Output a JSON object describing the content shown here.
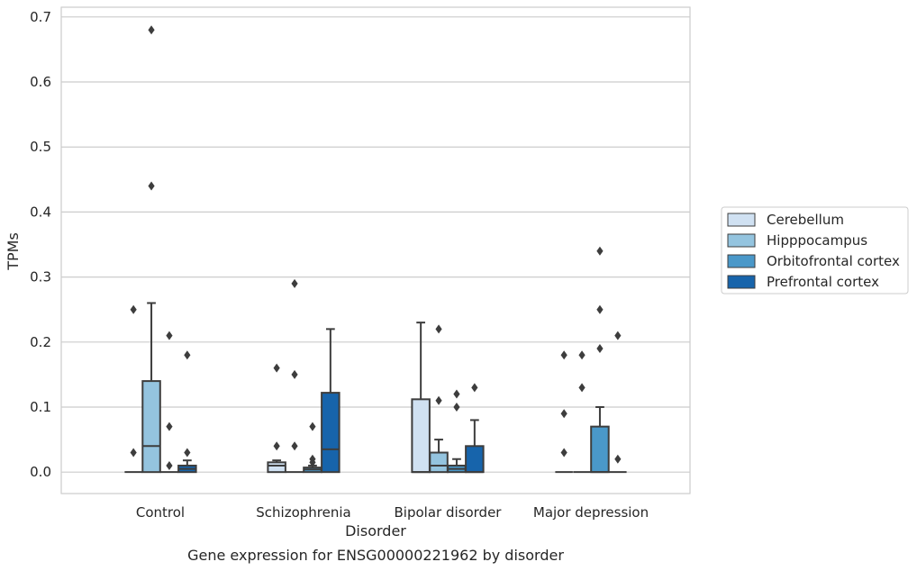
{
  "chart_data": {
    "type": "boxplot",
    "title": "Gene expression for ENSG00000221962 by disorder",
    "xlabel": "Disorder",
    "ylabel": "TPMs",
    "ylim": [
      -0.033,
      0.715
    ],
    "yticks": [
      0.0,
      0.1,
      0.2,
      0.3,
      0.4,
      0.5,
      0.6,
      0.7
    ],
    "ytick_labels": [
      "0.0",
      "0.1",
      "0.2",
      "0.3",
      "0.4",
      "0.5",
      "0.6",
      "0.7"
    ],
    "categories": [
      "Control",
      "Schizophrenia",
      "Bipolar disorder",
      "Major depression"
    ],
    "grid": "horizontal",
    "legend_position": "right",
    "series": [
      {
        "name": "Cerebellum",
        "color": "#d0e1f2",
        "boxes": [
          {
            "q1": 0.0,
            "median": 0.0,
            "q3": 0.0,
            "whislo": 0.0,
            "whishi": 0.0,
            "fliers": [
              0.25,
              0.03
            ]
          },
          {
            "q1": 0.0,
            "median": 0.01,
            "q3": 0.015,
            "whislo": 0.0,
            "whishi": 0.018,
            "fliers": [
              0.16,
              0.04
            ]
          },
          {
            "q1": 0.0,
            "median": 0.0,
            "q3": 0.112,
            "whislo": 0.0,
            "whishi": 0.23,
            "fliers": []
          },
          {
            "q1": 0.0,
            "median": 0.0,
            "q3": 0.0,
            "whislo": 0.0,
            "whishi": 0.0,
            "fliers": [
              0.18,
              0.09,
              0.03
            ]
          }
        ]
      },
      {
        "name": "Hipppocampus",
        "color": "#94c4df",
        "boxes": [
          {
            "q1": 0.0,
            "median": 0.04,
            "q3": 0.14,
            "whislo": 0.0,
            "whishi": 0.26,
            "fliers": [
              0.68,
              0.44
            ]
          },
          {
            "q1": 0.0,
            "median": 0.0,
            "q3": 0.0,
            "whislo": 0.0,
            "whishi": 0.0,
            "fliers": [
              0.29,
              0.15,
              0.04
            ]
          },
          {
            "q1": 0.0,
            "median": 0.01,
            "q3": 0.03,
            "whislo": 0.0,
            "whishi": 0.05,
            "fliers": [
              0.22,
              0.11
            ]
          },
          {
            "q1": 0.0,
            "median": 0.0,
            "q3": 0.0,
            "whislo": 0.0,
            "whishi": 0.0,
            "fliers": [
              0.18,
              0.13
            ]
          }
        ]
      },
      {
        "name": "Orbitofrontal cortex",
        "color": "#4a98c9",
        "boxes": [
          {
            "q1": 0.0,
            "median": 0.0,
            "q3": 0.0,
            "whislo": 0.0,
            "whishi": 0.0,
            "fliers": [
              0.21,
              0.07,
              0.01
            ]
          },
          {
            "q1": 0.0,
            "median": 0.004,
            "q3": 0.007,
            "whislo": 0.0,
            "whishi": 0.01,
            "fliers": [
              0.07,
              0.02,
              0.015
            ]
          },
          {
            "q1": 0.0,
            "median": 0.005,
            "q3": 0.01,
            "whislo": 0.0,
            "whishi": 0.02,
            "fliers": [
              0.12,
              0.1
            ]
          },
          {
            "q1": 0.0,
            "median": 0.0,
            "q3": 0.07,
            "whislo": 0.0,
            "whishi": 0.1,
            "fliers": [
              0.34,
              0.25,
              0.19
            ]
          }
        ]
      },
      {
        "name": "Prefrontal cortex",
        "color": "#1764ab",
        "boxes": [
          {
            "q1": 0.0,
            "median": 0.005,
            "q3": 0.01,
            "whislo": 0.0,
            "whishi": 0.018,
            "fliers": [
              0.18,
              0.03
            ]
          },
          {
            "q1": 0.0,
            "median": 0.035,
            "q3": 0.122,
            "whislo": 0.0,
            "whishi": 0.22,
            "fliers": []
          },
          {
            "q1": 0.0,
            "median": 0.0,
            "q3": 0.04,
            "whislo": 0.0,
            "whishi": 0.08,
            "fliers": [
              0.13
            ]
          },
          {
            "q1": 0.0,
            "median": 0.0,
            "q3": 0.0,
            "whislo": 0.0,
            "whishi": 0.0,
            "fliers": [
              0.21,
              0.02
            ]
          }
        ]
      }
    ]
  }
}
